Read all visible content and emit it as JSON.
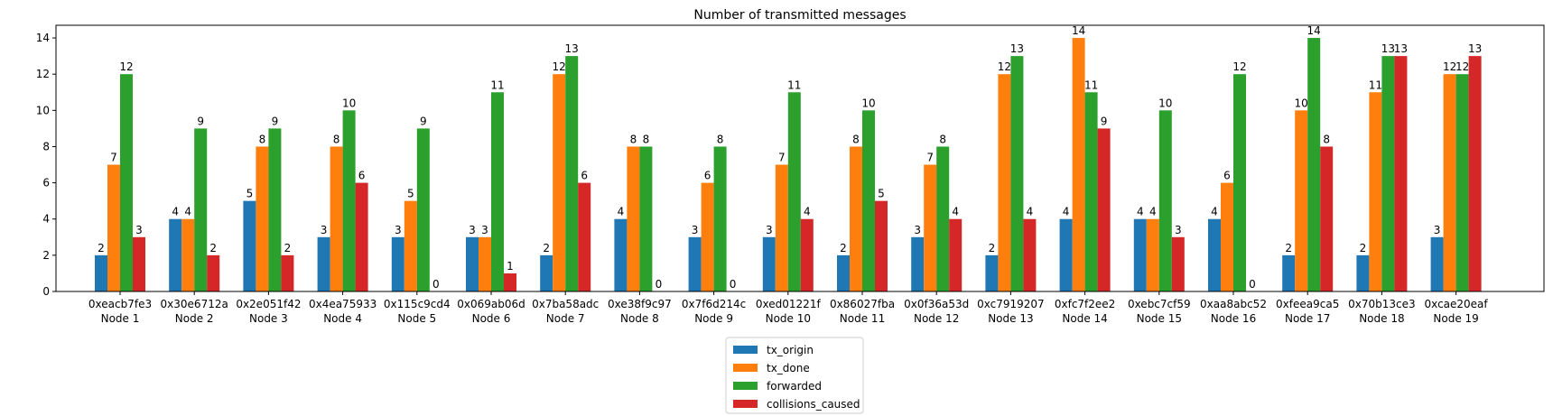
{
  "chart_data": {
    "type": "bar",
    "title": "Number of transmitted messages",
    "xlabel": "",
    "ylabel": "",
    "ylim": [
      0,
      14.7
    ],
    "yticks": [
      0,
      2,
      4,
      6,
      8,
      10,
      12,
      14
    ],
    "grid": false,
    "legend_position": "bottom-center",
    "categories": [
      {
        "id": "0xeacb7fe3",
        "node": "Node 1"
      },
      {
        "id": "0x30e6712a",
        "node": "Node 2"
      },
      {
        "id": "0x2e051f42",
        "node": "Node 3"
      },
      {
        "id": "0x4ea75933",
        "node": "Node 4"
      },
      {
        "id": "0x115c9cd4",
        "node": "Node 5"
      },
      {
        "id": "0x069ab06d",
        "node": "Node 6"
      },
      {
        "id": "0x7ba58adc",
        "node": "Node 7"
      },
      {
        "id": "0xe38f9c97",
        "node": "Node 8"
      },
      {
        "id": "0x7f6d214c",
        "node": "Node 9"
      },
      {
        "id": "0xed01221f",
        "node": "Node 10"
      },
      {
        "id": "0x86027fba",
        "node": "Node 11"
      },
      {
        "id": "0x0f36a53d",
        "node": "Node 12"
      },
      {
        "id": "0xc7919207",
        "node": "Node 13"
      },
      {
        "id": "0xfc7f2ee2",
        "node": "Node 14"
      },
      {
        "id": "0xebc7cf59",
        "node": "Node 15"
      },
      {
        "id": "0xaa8abc52",
        "node": "Node 16"
      },
      {
        "id": "0xfeea9ca5",
        "node": "Node 17"
      },
      {
        "id": "0x70b13ce3",
        "node": "Node 18"
      },
      {
        "id": "0xcae20eaf",
        "node": "Node 19"
      }
    ],
    "series": [
      {
        "name": "tx_origin",
        "color": "#1f77b4",
        "values": [
          2,
          4,
          5,
          3,
          3,
          3,
          2,
          4,
          3,
          3,
          2,
          3,
          2,
          4,
          4,
          4,
          2,
          2,
          3
        ]
      },
      {
        "name": "tx_done",
        "color": "#ff7f0e",
        "values": [
          7,
          4,
          8,
          8,
          5,
          3,
          12,
          8,
          6,
          7,
          8,
          7,
          12,
          14,
          4,
          6,
          10,
          11,
          12
        ]
      },
      {
        "name": "forwarded",
        "color": "#2ca02c",
        "values": [
          12,
          9,
          9,
          10,
          9,
          11,
          13,
          8,
          8,
          11,
          10,
          8,
          13,
          11,
          10,
          12,
          14,
          13,
          12
        ]
      },
      {
        "name": "collisions_caused",
        "color": "#d62728",
        "values": [
          3,
          2,
          2,
          6,
          0,
          1,
          6,
          0,
          0,
          4,
          5,
          4,
          4,
          9,
          3,
          0,
          8,
          13,
          13
        ]
      }
    ]
  }
}
